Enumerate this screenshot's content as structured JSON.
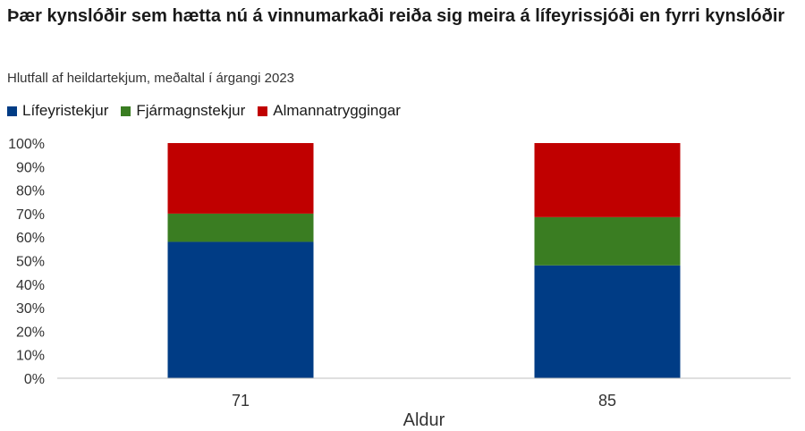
{
  "title": "Þær kynslóðir sem hætta nú á vinnumarkaði reiða sig meira á lífeyrissjóði en fyrri kynslóðir",
  "subtitle": "Hlutfall af heildartekjum, meðaltal í árgangi 2023",
  "chart_data": {
    "type": "bar",
    "stacked": true,
    "categories": [
      "71",
      "85"
    ],
    "series": [
      {
        "name": "Lífeyristekjur",
        "color": "#003c85",
        "values": [
          58,
          48
        ]
      },
      {
        "name": "Fjármagnstekjur",
        "color": "#3a7d22",
        "values": [
          12,
          20.5
        ]
      },
      {
        "name": "Almannatryggingar",
        "color": "#c00000",
        "values": [
          30,
          31.5
        ]
      }
    ],
    "xlabel": "Aldur",
    "ylabel": "",
    "ylim": [
      0,
      100
    ],
    "yticks": [
      "0%",
      "10%",
      "20%",
      "30%",
      "40%",
      "50%",
      "60%",
      "70%",
      "80%",
      "90%",
      "100%"
    ],
    "legend_position": "top-left",
    "grid": false
  }
}
